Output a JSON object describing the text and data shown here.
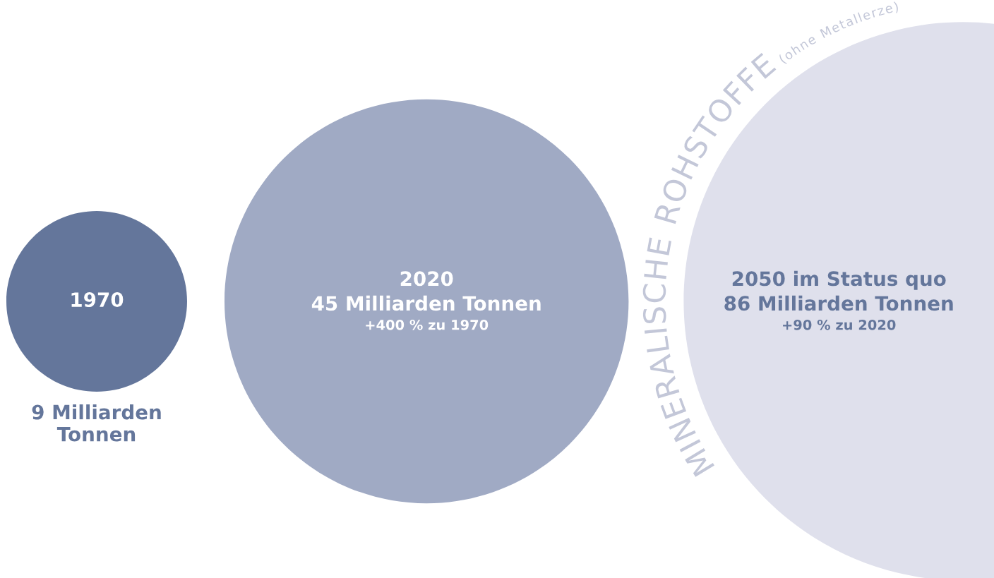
{
  "chart_data": {
    "type": "other",
    "title": "MINERALISCHE ROHSTOFFE",
    "subtitle": "(ohne Metallerze)",
    "categories": [
      "1970",
      "2020",
      "2050 im Status quo"
    ],
    "values": [
      9,
      45,
      86
    ],
    "value_labels": [
      "9 Milliarden Tonnen",
      "45 Milliarden Tonnen",
      "86 Milliarden Tonnen"
    ],
    "colors": [
      "#64769b",
      "#a0aac4",
      "#dfe0ec"
    ],
    "annotations": [
      "+400 % zu 1970",
      "+90 % zu 2020"
    ]
  }
}
